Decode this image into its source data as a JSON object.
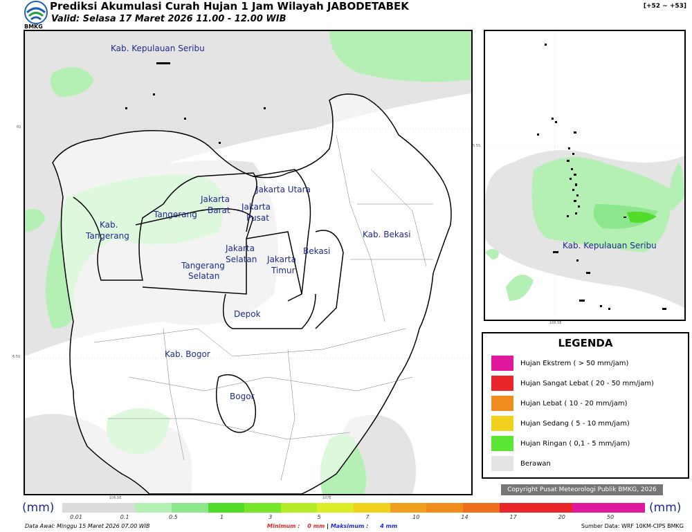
{
  "header": {
    "logo_text": "BMKG",
    "title": "Prediksi Akumulasi Curah Hujan 1 Jam Wilayah JABODETABEK",
    "valid": "Valid: Selasa 17 Maret 2026 11.00 - 12.00 WIB",
    "run_range": "[+52 ~ +53]"
  },
  "main_map": {
    "ticks": {
      "lat_top": "6S",
      "lat_bottom": "6.5S",
      "lon_left": "106.5E",
      "lon_right": "107E"
    },
    "regions": [
      {
        "label": "Kab. Kepulauan Seribu"
      },
      {
        "label": "Jakarta Utara"
      },
      {
        "label": "Jakarta"
      },
      {
        "label": "Barat"
      },
      {
        "label": "Jakarta"
      },
      {
        "label": "Pusat"
      },
      {
        "label": "Tangerang"
      },
      {
        "label": "Kab."
      },
      {
        "label": "Tangerang"
      },
      {
        "label": "Jakarta"
      },
      {
        "label": "Selatan"
      },
      {
        "label": "Tangerang"
      },
      {
        "label": "Selatan"
      },
      {
        "label": "Jakarta"
      },
      {
        "label": "Timur"
      },
      {
        "label": "Bekasi"
      },
      {
        "label": "Kab. Bekasi"
      },
      {
        "label": "Depok"
      },
      {
        "label": "Kab. Bogor"
      },
      {
        "label": "Bogor"
      }
    ]
  },
  "inset_map": {
    "ticks": {
      "lat": "5.5S",
      "lon": "106.5E"
    },
    "label": "Kab. Kepulauan Seribu"
  },
  "legend": {
    "title": "LEGENDA",
    "items": [
      {
        "label": "Hujan Ekstrem ( > 50 mm/jam)",
        "color": "#e0189c"
      },
      {
        "label": "Hujan Sangat Lebat ( 20 - 50 mm/jam)",
        "color": "#e8262a"
      },
      {
        "label": "Hujan Lebat ( 10 - 20 mm/jam)",
        "color": "#f08c1e"
      },
      {
        "label": "Hujan Sedang ( 5 - 10 mm/jam)",
        "color": "#f0d21e"
      },
      {
        "label": "Hujan Ringan ( 0,1 - 5 mm/jam)",
        "color": "#5ae632"
      },
      {
        "label": "Berawan",
        "color": "#e4e4e4"
      }
    ]
  },
  "copyright": "Copyright Pusat Meteorologi Publik BMKG, 2026",
  "colorbar": {
    "unit_left": "(mm)",
    "unit_right": "(mm)",
    "colors": [
      "#dcdcdc",
      "#dcdcdc",
      "#b4f0b4",
      "#8ce68c",
      "#50dc28",
      "#78e628",
      "#b4ec28",
      "#dcec28",
      "#f0d21e",
      "#f0a01e",
      "#f08c1e",
      "#ec6e1e",
      "#e8262a",
      "#e8262a",
      "#e0189c",
      "#e0189c"
    ],
    "ticks": [
      "0.01",
      "0.1",
      "0.5",
      "1",
      "3",
      "5",
      "7",
      "10",
      "14",
      "17",
      "20",
      "50"
    ]
  },
  "footer": {
    "data_awal": "Data Awal: Minggu 15 Maret 2026 07.00 WIB",
    "minimum_label": "Minimum :",
    "minimum_value": "0 mm",
    "maximum_label": "Maksimum :",
    "maximum_value": "4 mm",
    "source": "Sumber Data: WRF 10KM-CIPS BMKG"
  }
}
